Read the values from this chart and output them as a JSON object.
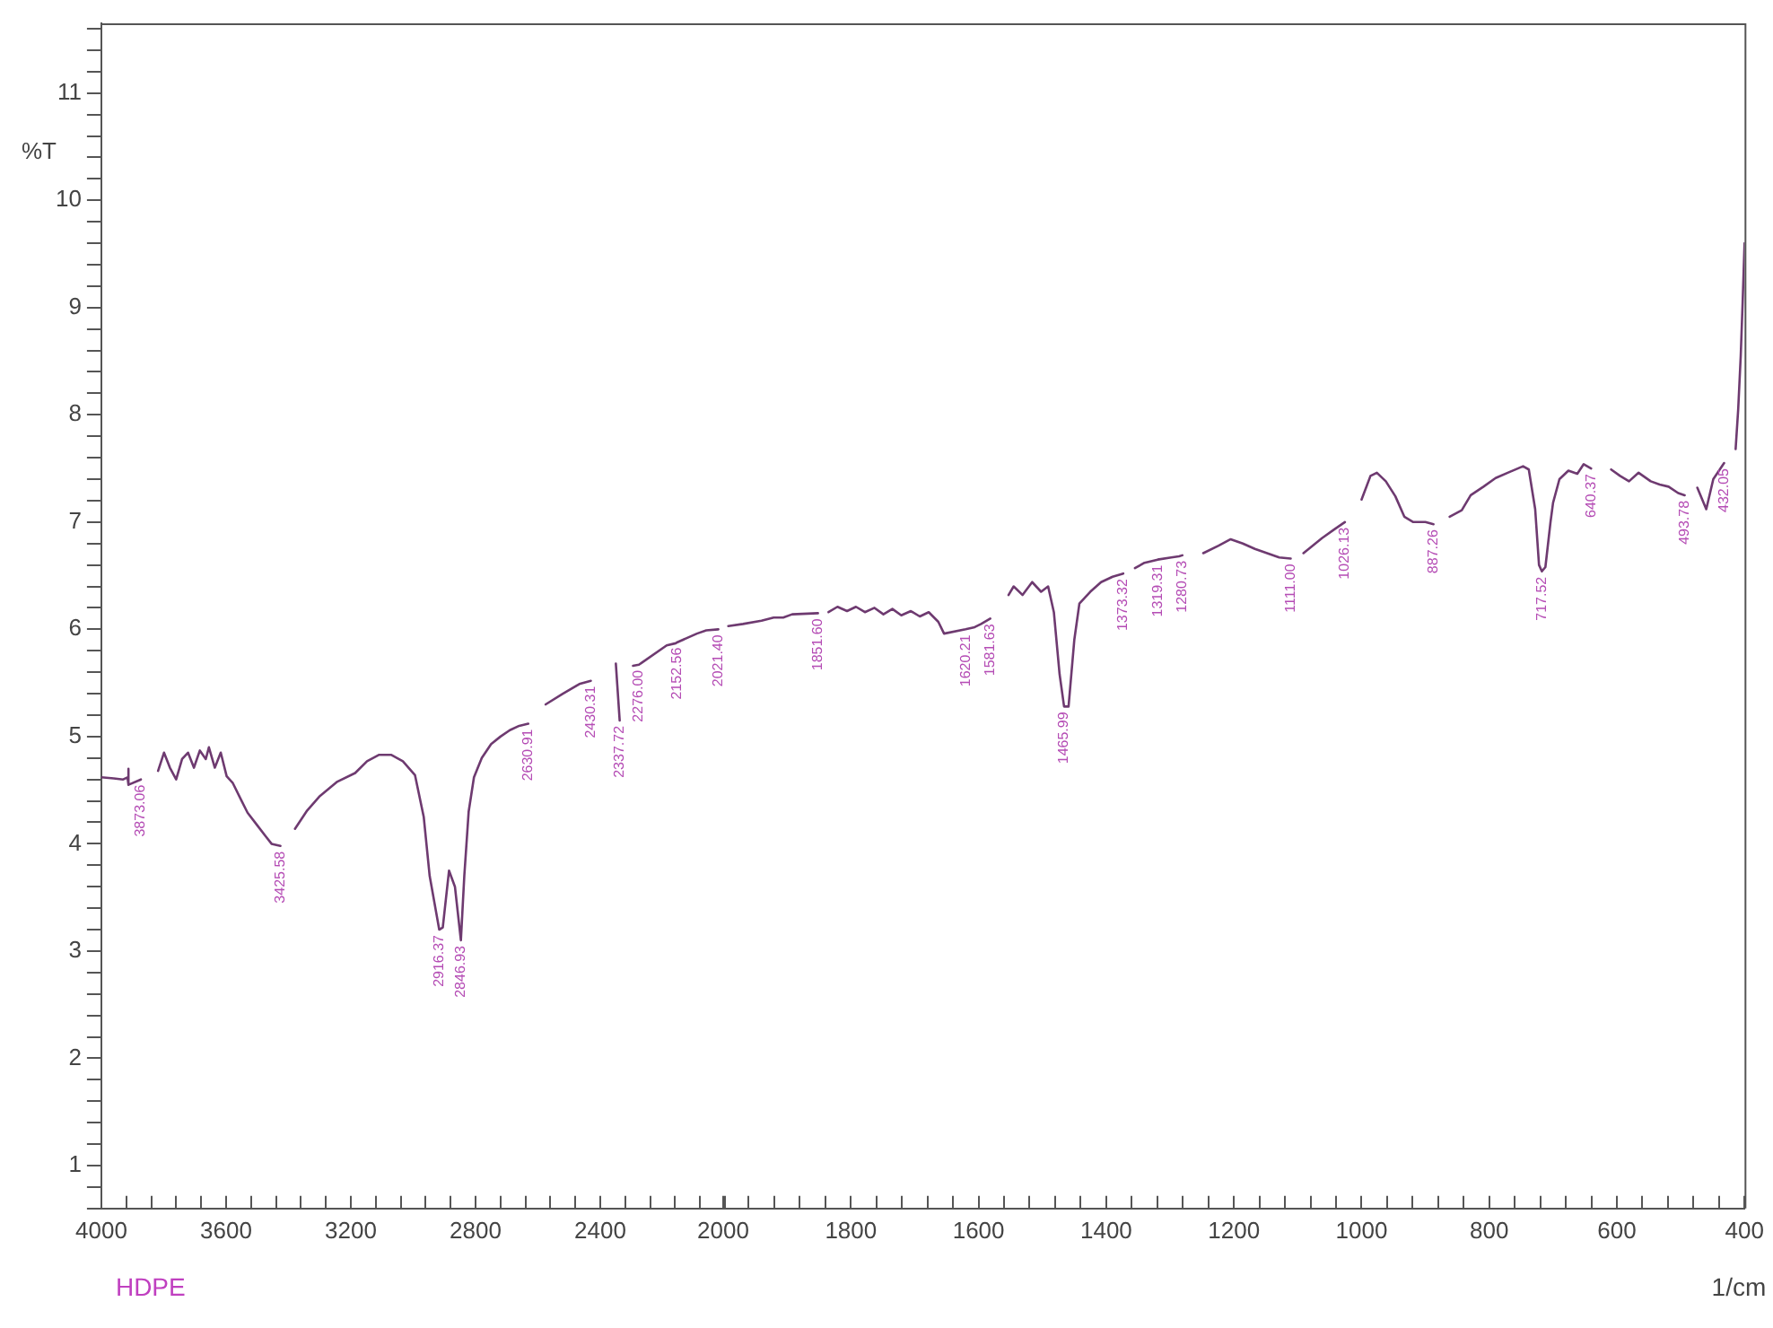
{
  "chart_data": [
    {
      "type": "line",
      "title": "HDPE",
      "ylabel": "%T",
      "color": "#6e3a70",
      "marker": "none",
      "line_style": "solid",
      "xlim": [
        4000,
        2000
      ],
      "ylim": [
        0.6,
        11.65
      ],
      "xticks": [
        4000,
        {
          "value": 3920,
          "label": null
        },
        {
          "value": 3840,
          "label": null
        },
        {
          "value": 3760,
          "label": null
        },
        {
          "value": 3680,
          "label": null
        },
        3600,
        {
          "value": 3520,
          "label": null
        },
        {
          "value": 3440,
          "label": null
        },
        {
          "value": 3360,
          "label": null
        },
        {
          "value": 3280,
          "label": null
        },
        3200,
        {
          "value": 3120,
          "label": null
        },
        {
          "value": 3040,
          "label": null
        },
        {
          "value": 2960,
          "label": null
        },
        {
          "value": 2880,
          "label": null
        },
        2800,
        {
          "value": 2720,
          "label": null
        },
        {
          "value": 2640,
          "label": null
        },
        {
          "value": 2560,
          "label": null
        },
        {
          "value": 2480,
          "label": null
        },
        2400,
        {
          "value": 2320,
          "label": null
        },
        {
          "value": 2240,
          "label": null
        },
        {
          "value": 2160,
          "label": null
        },
        {
          "value": 2080,
          "label": null
        },
        {
          "value": 2000,
          "label": null
        }
      ],
      "yticks": [
        {
          "value": 0.6,
          "label": null
        },
        {
          "value": 0.8,
          "label": null
        },
        1,
        {
          "value": 1.2,
          "label": null
        },
        {
          "value": 1.4,
          "label": null
        },
        {
          "value": 1.6,
          "label": null
        },
        {
          "value": 1.8,
          "label": null
        },
        2,
        {
          "value": 2.2,
          "label": null
        },
        {
          "value": 2.4,
          "label": null
        },
        {
          "value": 2.6,
          "label": null
        },
        {
          "value": 2.8,
          "label": null
        },
        3,
        {
          "value": 3.2,
          "label": null
        },
        {
          "value": 3.4,
          "label": null
        },
        {
          "value": 3.6,
          "label": null
        },
        {
          "value": 3.8,
          "label": null
        },
        4,
        {
          "value": 4.2,
          "label": null
        },
        {
          "value": 4.4,
          "label": null
        },
        {
          "value": 4.6,
          "label": null
        },
        {
          "value": 4.8,
          "label": null
        },
        5,
        {
          "value": 5.2,
          "label": null
        },
        {
          "value": 5.4,
          "label": null
        },
        {
          "value": 5.6,
          "label": null
        },
        {
          "value": 5.8,
          "label": null
        },
        6,
        {
          "value": 6.2,
          "label": null
        },
        {
          "value": 6.4,
          "label": null
        },
        {
          "value": 6.6,
          "label": null
        },
        {
          "value": 6.8,
          "label": null
        },
        7,
        {
          "value": 7.2,
          "label": null
        },
        {
          "value": 7.4,
          "label": null
        },
        {
          "value": 7.6,
          "label": null
        },
        {
          "value": 7.8,
          "label": null
        },
        8,
        {
          "value": 8.2,
          "label": null
        },
        {
          "value": 8.4,
          "label": null
        },
        {
          "value": 8.6,
          "label": null
        },
        {
          "value": 8.8,
          "label": null
        },
        9,
        {
          "value": 9.2,
          "label": null
        },
        {
          "value": 9.4,
          "label": null
        },
        {
          "value": 9.6,
          "label": null
        },
        {
          "value": 9.8,
          "label": null
        },
        10,
        {
          "value": 10.2,
          "label": null
        },
        {
          "value": 10.4,
          "label": null
        },
        {
          "value": 10.6,
          "label": null
        },
        {
          "value": 10.8,
          "label": null
        },
        11,
        {
          "value": 11.2,
          "label": null
        },
        {
          "value": 11.4,
          "label": null
        },
        {
          "value": 11.6,
          "label": null
        }
      ],
      "x": [
        4000,
        3960,
        3930,
        3916,
        3914,
        3912,
        3873.06,
        3850,
        3818,
        3799,
        3780,
        3760,
        3741,
        3722,
        3703,
        3684,
        3665,
        3655,
        3636,
        3617,
        3598,
        3579,
        3550,
        3531,
        3502,
        3473,
        3454,
        3425.58,
        3400,
        3379,
        3340,
        3301,
        3243,
        3186,
        3148,
        3109,
        3071,
        3033,
        2994,
        2966,
        2947,
        2916.37,
        2905,
        2885,
        2866,
        2846.93,
        2836,
        2822,
        2805,
        2780,
        2750,
        2720,
        2690,
        2660,
        2630.91,
        2600,
        2575,
        2520,
        2467,
        2430.31,
        2400,
        2350,
        2337.72,
        2310,
        2295,
        2276,
        2266,
        2187,
        2158,
        2152.56,
        2090,
        2060,
        2021.4
      ],
      "values": [
        4.62,
        4.61,
        4.6,
        4.62,
        4.7,
        4.55,
        4.6,
        null,
        4.68,
        4.85,
        4.71,
        4.6,
        4.79,
        4.85,
        4.71,
        4.87,
        4.79,
        4.9,
        4.71,
        4.85,
        4.63,
        4.57,
        4.4,
        4.29,
        4.18,
        4.07,
        4.0,
        3.98,
        null,
        4.14,
        4.31,
        4.44,
        4.58,
        4.66,
        4.77,
        4.83,
        4.83,
        4.77,
        4.64,
        4.25,
        3.7,
        3.2,
        3.22,
        3.75,
        3.6,
        3.1,
        3.7,
        4.3,
        4.62,
        4.8,
        4.93,
        5.0,
        5.06,
        5.1,
        5.12,
        null,
        5.3,
        5.4,
        5.49,
        5.52,
        null,
        5.68,
        5.15,
        null,
        5.66,
        5.67,
        5.69,
        5.85,
        5.87,
        5.88,
        5.96,
        5.99,
        6.0
      ],
      "annotations": [
        {
          "text": "3873.06",
          "x": 3873.06,
          "y": 4.6
        },
        {
          "text": "3425.58",
          "x": 3425.58,
          "y": 3.98
        },
        {
          "text": "2916.37",
          "x": 2916.37,
          "y": 3.2
        },
        {
          "text": "2846.93",
          "x": 2846.93,
          "y": 3.1
        },
        {
          "text": "2630.91",
          "x": 2630.91,
          "y": 5.12
        },
        {
          "text": "2430.31",
          "x": 2430.31,
          "y": 5.52
        },
        {
          "text": "2337.72",
          "x": 2337.72,
          "y": 5.15
        },
        {
          "text": "2276.00",
          "x": 2276.0,
          "y": 5.67
        },
        {
          "text": "2152.56",
          "x": 2152.56,
          "y": 5.88
        },
        {
          "text": "2021.40",
          "x": 2021.4,
          "y": 6.0
        }
      ]
    },
    {
      "type": "line",
      "xlabel": "1/cm",
      "color": "#6e3a70",
      "marker": "none",
      "line_style": "solid",
      "tick_labels": "x",
      "xlim": [
        2000,
        400
      ],
      "ylim": [
        0.6,
        11.65
      ],
      "xticks": [
        2000,
        {
          "value": 1960,
          "label": null
        },
        {
          "value": 1920,
          "label": null
        },
        {
          "value": 1880,
          "label": null
        },
        {
          "value": 1840,
          "label": null
        },
        1800,
        {
          "value": 1760,
          "label": null
        },
        {
          "value": 1720,
          "label": null
        },
        {
          "value": 1680,
          "label": null
        },
        {
          "value": 1640,
          "label": null
        },
        1600,
        {
          "value": 1560,
          "label": null
        },
        {
          "value": 1520,
          "label": null
        },
        {
          "value": 1480,
          "label": null
        },
        {
          "value": 1440,
          "label": null
        },
        1400,
        {
          "value": 1360,
          "label": null
        },
        {
          "value": 1320,
          "label": null
        },
        {
          "value": 1280,
          "label": null
        },
        {
          "value": 1240,
          "label": null
        },
        1200,
        {
          "value": 1160,
          "label": null
        },
        {
          "value": 1120,
          "label": null
        },
        {
          "value": 1080,
          "label": null
        },
        {
          "value": 1040,
          "label": null
        },
        1000,
        {
          "value": 960,
          "label": null
        },
        {
          "value": 920,
          "label": null
        },
        {
          "value": 880,
          "label": null
        },
        {
          "value": 840,
          "label": null
        },
        800,
        {
          "value": 760,
          "label": null
        },
        {
          "value": 720,
          "label": null
        },
        {
          "value": 680,
          "label": null
        },
        {
          "value": 640,
          "label": null
        },
        600,
        {
          "value": 560,
          "label": null
        },
        {
          "value": 520,
          "label": null
        },
        {
          "value": 480,
          "label": null
        },
        {
          "value": 440,
          "label": null
        },
        400
      ],
      "x": [
        1992,
        1969,
        1940,
        1921,
        1906,
        1892,
        1851.6,
        1845,
        1835,
        1821,
        1806,
        1792,
        1778,
        1763,
        1749,
        1735,
        1721,
        1706,
        1692,
        1678,
        1663,
        1654,
        1620.21,
        1606,
        1596,
        1581.63,
        1570,
        1553,
        1545,
        1531,
        1516,
        1502,
        1491,
        1482,
        1473,
        1465.99,
        1459,
        1450,
        1442,
        1425,
        1408,
        1390,
        1373.32,
        1365,
        1355,
        1340,
        1319.31,
        1298,
        1286,
        1280.73,
        1265,
        1248,
        1224,
        1205,
        1186,
        1167,
        1148,
        1129,
        1111,
        1100,
        1091,
        1062,
        1043,
        1026.13,
        1015,
        1000,
        986,
        976,
        962,
        947,
        933,
        919,
        900,
        887.26,
        875,
        862,
        843,
        829,
        809,
        790,
        771,
        747,
        738,
        728,
        722,
        717.52,
        712,
        704,
        700,
        690,
        676,
        662,
        652,
        640.37,
        630,
        609,
        595,
        581,
        566,
        547,
        533,
        519,
        504,
        493.78,
        485,
        474,
        460,
        449,
        432.05,
        422,
        414,
        410,
        406,
        403,
        400
      ],
      "values": [
        6.03,
        6.05,
        6.08,
        6.11,
        6.11,
        6.14,
        6.15,
        null,
        6.16,
        6.21,
        6.17,
        6.21,
        6.16,
        6.2,
        6.14,
        6.19,
        6.13,
        6.17,
        6.12,
        6.16,
        6.07,
        5.96,
        6.0,
        6.02,
        6.05,
        6.1,
        null,
        6.32,
        6.4,
        6.32,
        6.44,
        6.35,
        6.4,
        6.16,
        5.58,
        5.28,
        5.28,
        5.9,
        6.24,
        6.35,
        6.44,
        6.49,
        6.52,
        null,
        6.57,
        6.62,
        6.65,
        6.67,
        6.68,
        6.69,
        null,
        6.71,
        6.78,
        6.84,
        6.8,
        6.75,
        6.71,
        6.67,
        6.66,
        null,
        6.71,
        6.85,
        6.93,
        7.0,
        null,
        7.21,
        7.43,
        7.46,
        7.38,
        7.24,
        7.05,
        7.0,
        7.0,
        6.98,
        null,
        7.05,
        7.11,
        7.25,
        7.33,
        7.41,
        7.46,
        7.52,
        7.49,
        7.12,
        6.6,
        6.54,
        6.58,
        7.0,
        7.18,
        7.4,
        7.48,
        7.45,
        7.54,
        7.5,
        null,
        7.49,
        7.43,
        7.38,
        7.46,
        7.38,
        7.35,
        7.33,
        7.27,
        7.25,
        null,
        7.32,
        7.12,
        7.4,
        7.55,
        null,
        7.68,
        8.05,
        8.55,
        9.05,
        9.6
      ],
      "annotations": [
        {
          "text": "1851.60",
          "x": 1851.6,
          "y": 6.15
        },
        {
          "text": "1620.21",
          "x": 1620.21,
          "y": 6.0
        },
        {
          "text": "1581.63",
          "x": 1581.63,
          "y": 6.1
        },
        {
          "text": "1465.99",
          "x": 1465.99,
          "y": 5.28
        },
        {
          "text": "1373.32",
          "x": 1373.32,
          "y": 6.52
        },
        {
          "text": "1319.31",
          "x": 1319.31,
          "y": 6.65
        },
        {
          "text": "1280.73",
          "x": 1280.73,
          "y": 6.69
        },
        {
          "text": "1111.00",
          "x": 1111.0,
          "y": 6.66
        },
        {
          "text": "1026.13",
          "x": 1026.13,
          "y": 7.0
        },
        {
          "text": "887.26",
          "x": 887.26,
          "y": 6.98
        },
        {
          "text": "717.52",
          "x": 717.52,
          "y": 6.54
        },
        {
          "text": "640.37",
          "x": 640.37,
          "y": 7.5
        },
        {
          "text": "493.78",
          "x": 493.78,
          "y": 7.25
        },
        {
          "text": "432.05",
          "x": 432.05,
          "y": 7.55
        }
      ]
    }
  ]
}
